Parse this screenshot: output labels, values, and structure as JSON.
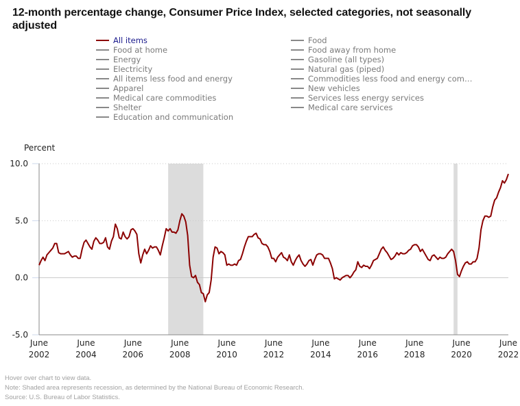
{
  "title": "12-month percentage change, Consumer Price Index, selected categories, not seasonally adjusted",
  "legend": {
    "left": [
      {
        "label": "All items",
        "active": true
      },
      {
        "label": "Food at home",
        "active": false
      },
      {
        "label": "Energy",
        "active": false
      },
      {
        "label": "Electricity",
        "active": false
      },
      {
        "label": "All items less food and energy",
        "active": false
      },
      {
        "label": "Apparel",
        "active": false
      },
      {
        "label": "Medical care commodities",
        "active": false
      },
      {
        "label": "Shelter",
        "active": false
      },
      {
        "label": "Education and communication",
        "active": false
      }
    ],
    "right": [
      {
        "label": "Food",
        "active": false
      },
      {
        "label": "Food away from home",
        "active": false
      },
      {
        "label": "Gasoline (all types)",
        "active": false
      },
      {
        "label": "Natural gas (piped)",
        "active": false
      },
      {
        "label": "Commodities less food and energy com…",
        "active": false
      },
      {
        "label": "New vehicles",
        "active": false
      },
      {
        "label": "Services less energy services",
        "active": false
      },
      {
        "label": "Medical care services",
        "active": false
      }
    ]
  },
  "notes": {
    "hover": "Hover over chart to view data.",
    "note": "Note: Shaded area represents recession, as determined by the National Bureau of Economic Research.",
    "source": "Source: U.S. Bureau of Labor Statistics."
  },
  "colors": {
    "series": "#8b0000",
    "recession": "#dcdcdc",
    "grid": "#cccccc",
    "legend_active": "#1a1a8c",
    "legend_inactive": "#7a7a7a"
  },
  "chart_data": {
    "type": "line",
    "title": "12-month percentage change, Consumer Price Index, selected categories, not seasonally adjusted",
    "ylabel": "Percent",
    "xlabel": "",
    "ylim": [
      -5.0,
      10.0
    ],
    "yticks": [
      -5.0,
      0.0,
      5.0,
      10.0
    ],
    "ytick_labels": [
      "-5.0",
      "0.0",
      "5.0",
      "10.0"
    ],
    "grid": "horizontal dotted",
    "x_start": "2002-06",
    "x_end": "2022-06",
    "x_frequency": "monthly",
    "xtick_labels": [
      [
        "June",
        "2002"
      ],
      [
        "June",
        "2004"
      ],
      [
        "June",
        "2006"
      ],
      [
        "June",
        "2008"
      ],
      [
        "June",
        "2010"
      ],
      [
        "June",
        "2012"
      ],
      [
        "June",
        "2014"
      ],
      [
        "June",
        "2016"
      ],
      [
        "June",
        "2018"
      ],
      [
        "June",
        "2020"
      ],
      [
        "June",
        "2022"
      ]
    ],
    "recessions": [
      {
        "start": "2007-12",
        "end": "2009-06"
      },
      {
        "start": "2020-02",
        "end": "2020-04"
      }
    ],
    "series": [
      {
        "name": "All items",
        "values": [
          1.1,
          1.5,
          1.8,
          1.5,
          2.0,
          2.2,
          2.4,
          2.6,
          3.0,
          3.0,
          2.2,
          2.1,
          2.1,
          2.1,
          2.2,
          2.3,
          2.0,
          1.8,
          1.9,
          1.9,
          1.7,
          1.7,
          2.5,
          3.1,
          3.3,
          3.0,
          2.7,
          2.5,
          3.2,
          3.5,
          3.3,
          3.0,
          3.0,
          3.1,
          3.5,
          2.7,
          2.5,
          3.2,
          3.6,
          4.7,
          4.3,
          3.5,
          3.4,
          4.0,
          3.6,
          3.4,
          3.6,
          4.2,
          4.3,
          4.1,
          3.8,
          2.1,
          1.3,
          2.0,
          2.5,
          2.1,
          2.4,
          2.8,
          2.6,
          2.7,
          2.7,
          2.4,
          2.0,
          2.8,
          3.5,
          4.3,
          4.1,
          4.3,
          4.0,
          4.0,
          3.9,
          4.2,
          5.0,
          5.6,
          5.4,
          4.9,
          3.7,
          1.1,
          0.1,
          0.0,
          0.2,
          -0.4,
          -0.6,
          -1.3,
          -1.4,
          -2.1,
          -1.5,
          -1.3,
          -0.2,
          1.8,
          2.7,
          2.6,
          2.1,
          2.3,
          2.2,
          2.0,
          1.1,
          1.2,
          1.1,
          1.1,
          1.2,
          1.1,
          1.5,
          1.6,
          2.1,
          2.7,
          3.2,
          3.6,
          3.6,
          3.6,
          3.8,
          3.9,
          3.5,
          3.4,
          3.0,
          2.9,
          2.9,
          2.7,
          2.3,
          1.7,
          1.7,
          1.4,
          1.8,
          2.0,
          2.2,
          1.8,
          1.7,
          1.5,
          2.0,
          1.4,
          1.1,
          1.5,
          1.8,
          2.0,
          1.5,
          1.2,
          1.0,
          1.2,
          1.5,
          1.6,
          1.1,
          1.6,
          2.0,
          2.1,
          2.1,
          2.0,
          1.7,
          1.7,
          1.7,
          1.3,
          0.8,
          -0.1,
          0.0,
          -0.1,
          -0.2,
          0.0,
          0.1,
          0.2,
          0.2,
          0.0,
          0.2,
          0.5,
          0.7,
          1.4,
          1.0,
          0.9,
          1.1,
          1.0,
          1.0,
          0.8,
          1.1,
          1.5,
          1.6,
          1.7,
          2.1,
          2.5,
          2.7,
          2.4,
          2.2,
          1.9,
          1.6,
          1.7,
          1.9,
          2.2,
          2.0,
          2.2,
          2.1,
          2.1,
          2.2,
          2.4,
          2.5,
          2.8,
          2.9,
          2.9,
          2.7,
          2.3,
          2.5,
          2.2,
          1.9,
          1.6,
          1.5,
          1.9,
          2.0,
          1.8,
          1.6,
          1.8,
          1.7,
          1.7,
          1.8,
          2.1,
          2.3,
          2.5,
          2.3,
          1.5,
          0.3,
          0.1,
          0.6,
          1.0,
          1.3,
          1.4,
          1.2,
          1.2,
          1.4,
          1.4,
          1.7,
          2.6,
          4.2,
          5.0,
          5.4,
          5.4,
          5.3,
          5.4,
          6.2,
          6.8,
          7.0,
          7.5,
          7.9,
          8.5,
          8.3,
          8.6,
          9.1
        ]
      }
    ]
  }
}
